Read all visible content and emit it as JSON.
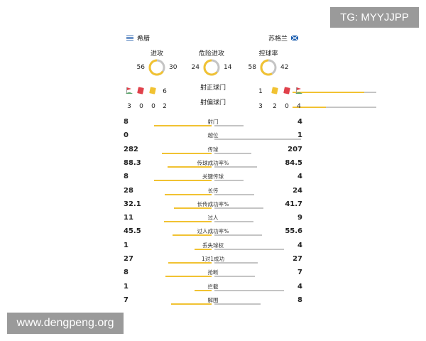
{
  "watermarks": {
    "tg": "TG: MYYJJPP",
    "site": "www.dengpeng.org"
  },
  "colors": {
    "home": "#f1c232",
    "away": "#c4c4c4",
    "red_card": "#e0414b"
  },
  "home": {
    "name": "希腊",
    "flag": "greece-flag-icon"
  },
  "away": {
    "name": "苏格兰",
    "flag": "scotland-flag-icon"
  },
  "donuts": [
    {
      "label": "进攻",
      "home": 56,
      "away": 30
    },
    {
      "label": "危险进攻",
      "home": 24,
      "away": 14
    },
    {
      "label": "控球率",
      "home": 58,
      "away": 42
    }
  ],
  "shots_on": {
    "label": "射正球门",
    "home": 6,
    "away": 1
  },
  "shots_off": {
    "label": "射偏球门",
    "home": 2,
    "away": 3
  },
  "events": {
    "home": {
      "corners": 3,
      "red": 0,
      "yellow": 0
    },
    "away": {
      "corners": 4,
      "red": 0,
      "yellow": 2
    }
  },
  "stats": [
    {
      "label": "射门",
      "home": "8",
      "away": "4"
    },
    {
      "label": "越位",
      "home": "0",
      "away": "1"
    },
    {
      "label": "传球",
      "home": "282",
      "away": "207"
    },
    {
      "label": "传球成功率%",
      "home": "88.3",
      "away": "84.5"
    },
    {
      "label": "关键传球",
      "home": "8",
      "away": "4"
    },
    {
      "label": "长传",
      "home": "28",
      "away": "24"
    },
    {
      "label": "长传成功率%",
      "home": "32.1",
      "away": "41.7"
    },
    {
      "label": "过人",
      "home": "11",
      "away": "9"
    },
    {
      "label": "过人成功率%",
      "home": "45.5",
      "away": "55.6"
    },
    {
      "label": "丢失球权",
      "home": "1",
      "away": "4"
    },
    {
      "label": "1对1成功",
      "home": "27",
      "away": "27"
    },
    {
      "label": "抢断",
      "home": "8",
      "away": "7"
    },
    {
      "label": "拦截",
      "home": "1",
      "away": "4"
    },
    {
      "label": "解围",
      "home": "7",
      "away": "8"
    }
  ]
}
